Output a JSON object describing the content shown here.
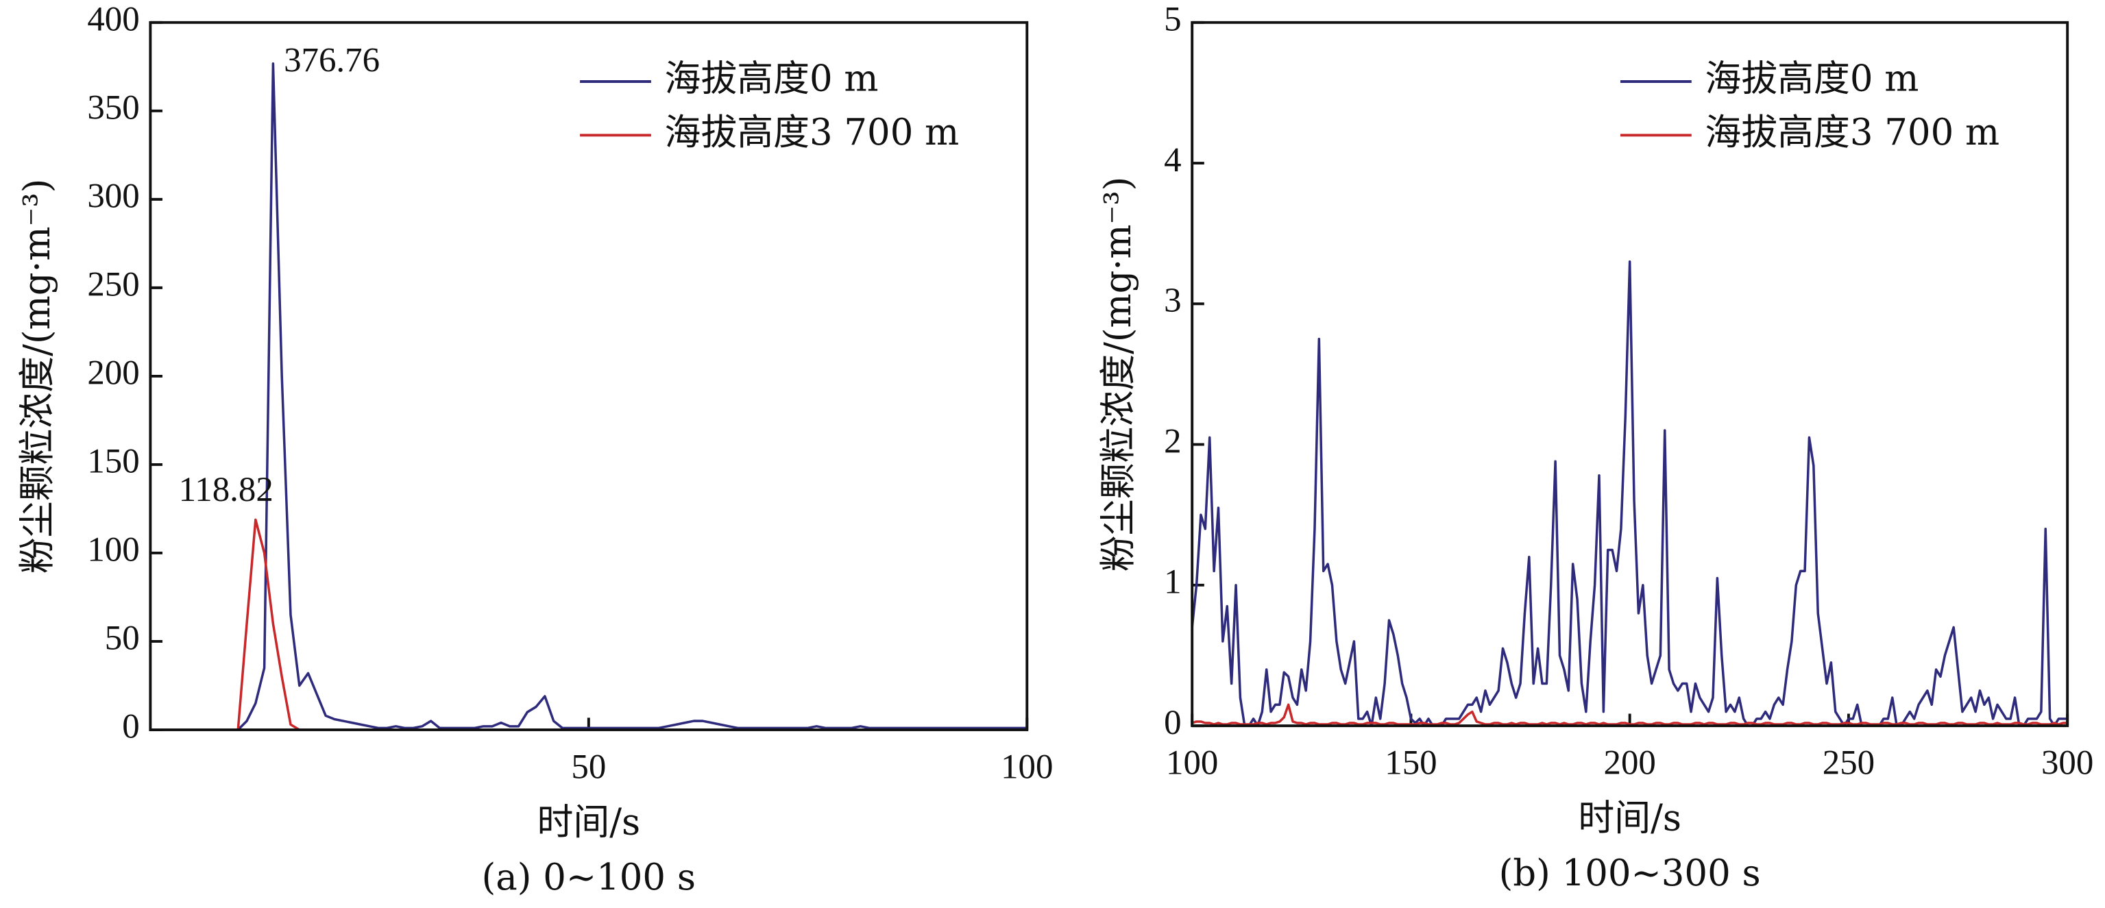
{
  "chart_data": [
    {
      "type": "line",
      "subtitle": "(a) 0~100 s",
      "xlabel": "时间/s",
      "ylabel": "粉尘颗粒浓度/(mg·m⁻³)",
      "x": [
        0,
        1,
        2,
        3,
        4,
        5,
        6,
        7,
        8,
        9,
        10,
        11,
        12,
        13,
        14,
        15,
        16,
        17,
        18,
        19,
        20,
        21,
        22,
        23,
        24,
        25,
        26,
        27,
        28,
        29,
        30,
        31,
        32,
        33,
        34,
        35,
        36,
        37,
        38,
        39,
        40,
        41,
        42,
        43,
        44,
        45,
        46,
        47,
        48,
        49,
        50,
        51,
        52,
        53,
        54,
        55,
        56,
        57,
        58,
        59,
        60,
        61,
        62,
        63,
        64,
        65,
        66,
        67,
        68,
        69,
        70,
        71,
        72,
        73,
        74,
        75,
        76,
        77,
        78,
        79,
        80,
        81,
        82,
        83,
        84,
        85,
        86,
        87,
        88,
        89,
        90,
        91,
        92,
        93,
        94,
        95,
        96,
        97,
        98,
        99,
        100
      ],
      "series": [
        {
          "name": "海拔高度0 m",
          "color": "#2f2b7c",
          "values": [
            0,
            0,
            0,
            0,
            0,
            0,
            0,
            0,
            0,
            0,
            0,
            5,
            15,
            35,
            376.76,
            200,
            65,
            25,
            32,
            20,
            8,
            6,
            5,
            4,
            3,
            2,
            1,
            1,
            2,
            1,
            1,
            2,
            5,
            1,
            1,
            1,
            1,
            1,
            2,
            2,
            4,
            2,
            2,
            10,
            13,
            19,
            5,
            1,
            1,
            1,
            1,
            1,
            1,
            1,
            1,
            1,
            1,
            1,
            1,
            2,
            3,
            4,
            5,
            5,
            4,
            3,
            2,
            1,
            1,
            1,
            1,
            1,
            1,
            1,
            1,
            1,
            2,
            1,
            1,
            1,
            1,
            2,
            1,
            1,
            1,
            1,
            1,
            1,
            1,
            1,
            1,
            1,
            1,
            1,
            1,
            1,
            1,
            1,
            1,
            1,
            1
          ]
        },
        {
          "name": "海拔高度3 700 m",
          "color": "#c8282a",
          "values": [
            0,
            0,
            0,
            0,
            0,
            0,
            0,
            0,
            0,
            0,
            0,
            60,
            118.82,
            100,
            60,
            30,
            3,
            0,
            0,
            0,
            0,
            0,
            0,
            0,
            0,
            0,
            0,
            0,
            0,
            0,
            0,
            0,
            0,
            0,
            0,
            0,
            0,
            0,
            0,
            0,
            0,
            0,
            0,
            0,
            0,
            0,
            0,
            0,
            0,
            0,
            0,
            0,
            0,
            0,
            0,
            0,
            0,
            0,
            0,
            0,
            0,
            0,
            0,
            0,
            0,
            0,
            0,
            0,
            0,
            0,
            0,
            0,
            0,
            0,
            0,
            0,
            0,
            0,
            0,
            0,
            0,
            0,
            0,
            0,
            0,
            0,
            0,
            0,
            0,
            0,
            0,
            0,
            0,
            0,
            0,
            0,
            0,
            0,
            0,
            0,
            0
          ]
        }
      ],
      "annotations": [
        {
          "text": "376.76",
          "x": 14,
          "y": 376.76
        },
        {
          "text": "118.82",
          "x": 12,
          "y": 118.82
        }
      ],
      "xlim": [
        0,
        100
      ],
      "xticks": [
        50,
        100
      ],
      "ylim": [
        0,
        400
      ],
      "yticks": [
        0,
        50,
        100,
        150,
        200,
        250,
        300,
        350,
        400
      ],
      "legend": "upper right"
    },
    {
      "type": "line",
      "subtitle": "(b) 100~300 s",
      "xlabel": "时间/s",
      "ylabel": "粉尘颗粒浓度/(mg·m⁻³)",
      "x": [
        100,
        101,
        102,
        103,
        104,
        105,
        106,
        107,
        108,
        109,
        110,
        111,
        112,
        113,
        114,
        115,
        116,
        117,
        118,
        119,
        120,
        121,
        122,
        123,
        124,
        125,
        126,
        127,
        128,
        129,
        130,
        131,
        132,
        133,
        134,
        135,
        136,
        137,
        138,
        139,
        140,
        141,
        142,
        143,
        144,
        145,
        146,
        147,
        148,
        149,
        150,
        151,
        152,
        153,
        154,
        155,
        156,
        157,
        158,
        159,
        160,
        161,
        162,
        163,
        164,
        165,
        166,
        167,
        168,
        169,
        170,
        171,
        172,
        173,
        174,
        175,
        176,
        177,
        178,
        179,
        180,
        181,
        182,
        183,
        184,
        185,
        186,
        187,
        188,
        189,
        190,
        191,
        192,
        193,
        194,
        195,
        196,
        197,
        198,
        199,
        200,
        201,
        202,
        203,
        204,
        205,
        206,
        207,
        208,
        209,
        210,
        211,
        212,
        213,
        214,
        215,
        216,
        217,
        218,
        219,
        220,
        221,
        222,
        223,
        224,
        225,
        226,
        227,
        228,
        229,
        230,
        231,
        232,
        233,
        234,
        235,
        236,
        237,
        238,
        239,
        240,
        241,
        242,
        243,
        244,
        245,
        246,
        247,
        248,
        249,
        250,
        251,
        252,
        253,
        254,
        255,
        256,
        257,
        258,
        259,
        260,
        261,
        262,
        263,
        264,
        265,
        266,
        267,
        268,
        269,
        270,
        271,
        272,
        273,
        274,
        275,
        276,
        277,
        278,
        279,
        280,
        281,
        282,
        283,
        284,
        285,
        286,
        287,
        288,
        289,
        290,
        291,
        292,
        293,
        294,
        295,
        296,
        297,
        298,
        299,
        300
      ],
      "series": [
        {
          "name": "海拔高度0 m",
          "color": "#2f2b7c",
          "values": [
            0.7,
            1.0,
            1.5,
            1.4,
            2.05,
            1.1,
            1.55,
            0.6,
            0.85,
            0.3,
            1.0,
            0.2,
            0,
            0,
            0.05,
            0,
            0.1,
            0.4,
            0.1,
            0.15,
            0.15,
            0.38,
            0.35,
            0.2,
            0.15,
            0.4,
            0.25,
            0.6,
            1.4,
            2.75,
            1.1,
            1.15,
            1.0,
            0.6,
            0.4,
            0.3,
            0.45,
            0.6,
            0.05,
            0.05,
            0.1,
            0,
            0.2,
            0.05,
            0.3,
            0.75,
            0.65,
            0.5,
            0.3,
            0.2,
            0.05,
            0.02,
            0.05,
            0,
            0.05,
            0,
            0,
            0,
            0.05,
            0.05,
            0.05,
            0.05,
            0.1,
            0.15,
            0.15,
            0.2,
            0.1,
            0.25,
            0.15,
            0.2,
            0.25,
            0.55,
            0.45,
            0.3,
            0.2,
            0.3,
            0.8,
            1.2,
            0.3,
            0.55,
            0.3,
            0.3,
            1.0,
            1.88,
            0.5,
            0.4,
            0.25,
            1.15,
            0.9,
            0.3,
            0.1,
            0.6,
            1.0,
            1.78,
            0.1,
            1.25,
            1.25,
            1.1,
            1.4,
            2.2,
            3.3,
            1.6,
            0.8,
            1.0,
            0.5,
            0.3,
            0.4,
            0.5,
            2.1,
            0.4,
            0.3,
            0.25,
            0.3,
            0.3,
            0.1,
            0.3,
            0.2,
            0.15,
            0.1,
            0.2,
            1.05,
            0.5,
            0.1,
            0.15,
            0.1,
            0.2,
            0.05,
            0,
            0,
            0.05,
            0.05,
            0.1,
            0.05,
            0.15,
            0.2,
            0.15,
            0.4,
            0.6,
            1.0,
            1.1,
            1.1,
            2.05,
            1.85,
            0.8,
            0.55,
            0.3,
            0.45,
            0.1,
            0.05,
            0,
            0.05,
            0.05,
            0.15,
            0,
            0,
            0,
            0,
            0,
            0.05,
            0.05,
            0.2,
            0,
            0,
            0.05,
            0.1,
            0.05,
            0.15,
            0.2,
            0.25,
            0.15,
            0.4,
            0.35,
            0.5,
            0.6,
            0.7,
            0.4,
            0.1,
            0.15,
            0.2,
            0.1,
            0.25,
            0.15,
            0.2,
            0.05,
            0.15,
            0.1,
            0.05,
            0.05,
            0.2,
            0,
            0,
            0.05,
            0.05,
            0.05,
            0.1,
            1.4,
            0.05,
            0,
            0.05,
            0.05,
            0.05
          ]
        },
        {
          "name": "海拔高度3 700 m",
          "color": "#c8282a",
          "values": [
            0.02,
            0.03,
            0.03,
            0.02,
            0.02,
            0.01,
            0.02,
            0.01,
            0.01,
            0.02,
            0.02,
            0.01,
            0.01,
            0.01,
            0.01,
            0.02,
            0.02,
            0.01,
            0.02,
            0.02,
            0.03,
            0.06,
            0.15,
            0.03,
            0.02,
            0.02,
            0.01,
            0.02,
            0.02,
            0.01,
            0.01,
            0.01,
            0.02,
            0.02,
            0.01,
            0.01,
            0.02,
            0.02,
            0.01,
            0.01,
            0.02,
            0.02,
            0.02,
            0.01,
            0.01,
            0.02,
            0.02,
            0.01,
            0.01,
            0.01,
            0.01,
            0.01,
            0.02,
            0.02,
            0.01,
            0.01,
            0.01,
            0.02,
            0.02,
            0.01,
            0.01,
            0.02,
            0.05,
            0.08,
            0.1,
            0.03,
            0.02,
            0.01,
            0.01,
            0.02,
            0.02,
            0.01,
            0.01,
            0.02,
            0.01,
            0.02,
            0.02,
            0.01,
            0.01,
            0.01,
            0.02,
            0.01,
            0.02,
            0.02,
            0.01,
            0.02,
            0.01,
            0.01,
            0.02,
            0.02,
            0.01,
            0.02,
            0.02,
            0.01,
            0.02,
            0.01,
            0.01,
            0.01,
            0.02,
            0.02,
            0.01,
            0.01,
            0.02,
            0.02,
            0.01,
            0.01,
            0.02,
            0.02,
            0.01,
            0.01,
            0.02,
            0.02,
            0.01,
            0.01,
            0.01,
            0.02,
            0.02,
            0.01,
            0.02,
            0.02,
            0.01,
            0.01,
            0.01,
            0.02,
            0.02,
            0.01,
            0.01,
            0.02,
            0.02,
            0.01,
            0.01,
            0.02,
            0.02,
            0.01,
            0.01,
            0.01,
            0.02,
            0.02,
            0.01,
            0.01,
            0.02,
            0.02,
            0.01,
            0.01,
            0.02,
            0.02,
            0.01,
            0.01,
            0.01,
            0.02,
            0.02,
            0.01,
            0.01,
            0.02,
            0.02,
            0.01,
            0.01,
            0.01,
            0.02,
            0.02,
            0.01,
            0.01,
            0.02,
            0.02,
            0.01,
            0.01,
            0.02,
            0.02,
            0.01,
            0.01,
            0.01,
            0.02,
            0.02,
            0.01,
            0.01,
            0.02,
            0.02,
            0.01,
            0.01,
            0.01,
            0.02,
            0.02,
            0.01,
            0.01,
            0.02,
            0.01,
            0.01,
            0.01,
            0.02,
            0.02,
            0.01,
            0.01,
            0.02,
            0.02,
            0.01,
            0.01,
            0.01,
            0.02,
            0.01,
            0.02,
            0.02
          ]
        }
      ],
      "xlim": [
        100,
        300
      ],
      "xticks": [
        100,
        150,
        200,
        250,
        300
      ],
      "ylim": [
        0,
        5
      ],
      "yticks": [
        0,
        1,
        2,
        3,
        4,
        5
      ],
      "legend": "upper right"
    }
  ]
}
